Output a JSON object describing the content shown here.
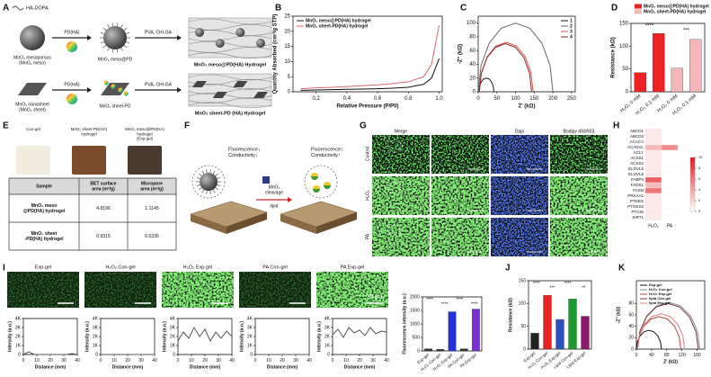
{
  "panel_labels": [
    "A",
    "B",
    "C",
    "D",
    "E",
    "F",
    "G",
    "H",
    "I",
    "J",
    "K"
  ],
  "schematic": {
    "legend": "HA-DOPA",
    "meso": [
      "MnO₂ mesoporous",
      "(MnO₂ meso)"
    ],
    "step1_top": "PD(HA)",
    "meso_pd": "MnO₂ meso@PD",
    "step2_top": "PVA, CHI-GA",
    "gel_top": "MnO₂ meso@PD(HA) Hydrogel",
    "sheet": [
      "MnO₂ nanosheet",
      "(MnO₂ sheet)"
    ],
    "step1_bottom": "PD(HA)",
    "sheet_pd": "MnO₂ sheet-PD",
    "step2_bottom": "PVA, CHI-GA",
    "gel_bottom": "MnO₂ sheet-PD (HA) Hydrogel"
  },
  "photos": {
    "labels": [
      [
        "Con-gel"
      ],
      [
        "MnO₂ sheet-PD(HA)",
        "hydrogel"
      ],
      [
        "MnO₂ meso@PD(HA)",
        "hydrogel",
        "(Exp-gel)"
      ]
    ]
  },
  "table": {
    "header": [
      [
        "Sample"
      ],
      [
        "BET surface",
        "area (m²/g)"
      ],
      [
        "Micropore",
        "area (m²/g)"
      ]
    ],
    "rows": [
      [
        [
          "MnO₂ meso",
          "@PD(HA) hydrogel"
        ],
        [
          "4.8196"
        ],
        [
          "1.1145"
        ]
      ],
      [
        [
          "MnO₂ sheet",
          "-PD(HA) hydrogel"
        ],
        [
          "0.9315"
        ],
        [
          "0.5336"
        ]
      ]
    ]
  },
  "sensing": {
    "left": [
      "Fluorescence↓",
      "Conductivity↓"
    ],
    "cleavage": [
      "MnO₂",
      "cleavage"
    ],
    "lipid": "lipid",
    "right": [
      "Fluorescence↑",
      "Conductivity↑"
    ]
  },
  "imaging": {
    "columns": [
      "Merge",
      "Dapi",
      "Bodipy 493/503"
    ],
    "rows": [
      "Control",
      "H₂O₂",
      "PA"
    ]
  },
  "gel_images": {
    "labels": [
      "Exp-gel",
      "H₂O₂ Con-gel",
      "H₂O₂ Exp-gel",
      "PA Con-gel",
      "PA Exp-gel"
    ],
    "scale_bar": "50 μm"
  },
  "chart_data": [
    {
      "type": "line",
      "xlabel": "Relative Pressure (P/P0)",
      "ylabel": "Quantity Absorbed (cm³/g STP)",
      "x": [
        0.1,
        0.2,
        0.3,
        0.4,
        0.5,
        0.6,
        0.7,
        0.8,
        0.9,
        0.95,
        1.0
      ],
      "series": [
        {
          "name": "MnO₂ meso@PD(HA) hydrogel",
          "color": "#111111",
          "values": [
            0.5,
            0.6,
            0.7,
            0.8,
            0.9,
            1.0,
            1.2,
            1.5,
            2.5,
            4.5,
            11
          ]
        },
        {
          "name": "MnO₂ sheet-PD(HA) hydrogel",
          "color": "#e06666",
          "values": [
            1,
            1.3,
            1.5,
            1.7,
            2,
            2.3,
            2.7,
            3.3,
            5,
            9,
            22
          ]
        }
      ],
      "xlim": [
        0.05,
        1.02
      ],
      "xticks": [
        0.2,
        0.4,
        0.6,
        0.8,
        {
          "value": 1,
          "label": "1.0"
        }
      ],
      "ylim": [
        0,
        25
      ],
      "yticks": [
        0,
        5,
        10,
        15,
        20,
        25
      ],
      "legend": "upper left"
    },
    {
      "type": "line",
      "xlabel": "Z' (kΩ)",
      "ylabel": "-Z'' (kΩ)",
      "series": [
        {
          "name": "1",
          "color": "#111111",
          "x": [
            42,
            40.5,
            36.1,
            29.7,
            22,
            14.3,
            7.9,
            3.5,
            2
          ],
          "values": [
            0,
            7.7,
            14.1,
            18.5,
            20,
            18.5,
            14.1,
            7.7,
            0
          ]
        },
        {
          "name": "2",
          "color": "#666666",
          "x": [
            200,
            192.4,
            170.7,
            138.3,
            100,
            61.7,
            29.3,
            7.6,
            0
          ],
          "values": [
            0,
            38.3,
            70.7,
            92.4,
            100,
            92.4,
            70.7,
            38.3,
            0
          ]
        },
        {
          "name": "3",
          "color": "#d9534f",
          "x": [
            147,
            141.5,
            125.9,
            102.6,
            75,
            47.4,
            24.1,
            8.5,
            3
          ],
          "values": [
            0,
            27.6,
            50.9,
            66.5,
            72,
            66.5,
            50.9,
            27.6,
            0
          ]
        },
        {
          "name": "4",
          "color": "#8b2a2a",
          "x": [
            143,
            137.7,
            122.5,
            99.8,
            73,
            46.2,
            23.5,
            8.3,
            3
          ],
          "values": [
            0,
            26.8,
            49.5,
            64.7,
            70,
            64.7,
            49.5,
            26.8,
            0
          ]
        }
      ],
      "xlim": [
        0,
        260
      ],
      "xticks": [
        0,
        50,
        100,
        150,
        200,
        250
      ],
      "ylim": [
        0,
        110
      ],
      "yticks": [
        0,
        20,
        40,
        60,
        80,
        100
      ],
      "legend": "upper right"
    },
    {
      "type": "bar",
      "ylabel": "Resistance (kΩ)",
      "categories": [
        "H₂O₂ 0 mM",
        "H₂O₂ 0.1 mM",
        "H₂O₂ 0 mM",
        "H₂O₂ 0.1 mM"
      ],
      "series": [
        {
          "name": "MnO₂ meso@PD(HA) hydrogel",
          "color": "#ee2222",
          "values": [
            42,
            128,
            null,
            null
          ]
        },
        {
          "name": "MnO₂ sheet-PD(HA) hydrogel",
          "color": "#f4b6b6",
          "values": [
            null,
            null,
            52,
            115
          ]
        }
      ],
      "ylim": [
        0,
        150
      ],
      "yticks": [
        0,
        50,
        100,
        150
      ],
      "legend": "upper left",
      "annotations": [
        "****",
        "***"
      ]
    },
    {
      "type": "bar",
      "ylabel": "Fluorescence intensity (a.u.)",
      "categories": [
        "Exp-gel",
        "H₂O₂ Con-gel",
        "H₂O₂ Exp-gel",
        "PA Con-gel",
        "PA Exp-gel"
      ],
      "values": [
        80,
        60,
        1450,
        80,
        1550
      ],
      "colors": [
        "#333333",
        "#333333",
        "#2233dd",
        "#333333",
        "#7b2fd0"
      ],
      "ylim": [
        0,
        2000
      ],
      "yticks": [
        0,
        500,
        1000,
        1500,
        2000
      ],
      "annotations": [
        "****",
        "****",
        "****",
        "****"
      ]
    },
    {
      "type": "bar",
      "ylabel": "Resistance (kΩ)",
      "categories": [
        "Exp-gel",
        "H₂O₂ Con-gel",
        "H₂O₂ Exp-gel",
        "Lipid Con-gel",
        "Lipid Exp-gel"
      ],
      "values": [
        35,
        118,
        65,
        110,
        72
      ],
      "colors": [
        "#222222",
        "#e8231f",
        "#3050c0",
        "#1a9a2a",
        "#8b1a6a"
      ],
      "ylim": [
        0,
        150
      ],
      "yticks": [
        0,
        50,
        100,
        150
      ],
      "annotations": [
        "****",
        "***",
        "****",
        "**"
      ]
    },
    {
      "type": "line",
      "xlabel": "Z' (kΩ)",
      "ylabel": "-Z'' (kΩ)",
      "series": [
        {
          "name": "Exp-gel",
          "color": "#111111",
          "x": [
            66,
            63.5,
            56.3,
            45.6,
            33,
            20.4,
            9.7,
            2.5,
            0
          ],
          "values": [
            0,
            12.6,
            23.3,
            30.5,
            33,
            30.5,
            23.3,
            12.6,
            0
          ]
        },
        {
          "name": "H₂O₂ Con-gel",
          "color": "#888888",
          "x": [
            167,
            160.8,
            143,
            116.4,
            85,
            53.6,
            27,
            9.2,
            3
          ],
          "values": [
            0,
            31.4,
            58,
            75.8,
            82,
            75.8,
            58,
            31.4,
            0
          ]
        },
        {
          "name": "H₂O₂ Exp-gel",
          "color": "#c04040",
          "x": [
            117,
            112.7,
            100.3,
            81.8,
            60,
            38.2,
            19.7,
            7.3,
            3
          ],
          "values": [
            0,
            21.8,
            40.3,
            52.7,
            57,
            52.7,
            40.3,
            21.8,
            0
          ]
        },
        {
          "name": "lipid Con-gel",
          "color": "#7a3a3a",
          "x": [
            163,
            156.9,
            139.6,
            113.6,
            83,
            52.4,
            26.4,
            9.1,
            3
          ],
          "values": [
            0,
            30.6,
            56.6,
            73.9,
            80,
            73.9,
            56.6,
            30.6,
            0
          ]
        },
        {
          "name": "lipid Exp-gel",
          "color": "#e08080",
          "x": [
            127,
            122.3,
            108.8,
            88.7,
            65,
            41.3,
            21.2,
            7.7,
            3
          ],
          "values": [
            0,
            23.7,
            43.8,
            57.3,
            62,
            57.3,
            43.8,
            23.7,
            0
          ]
        }
      ],
      "xlim": [
        0,
        180
      ],
      "xticks": [
        0,
        40,
        80,
        120,
        160
      ],
      "ylim": [
        0,
        120
      ],
      "yticks": [
        0,
        20,
        40,
        60,
        80
      ],
      "legend": "upper left"
    },
    {
      "type": "line",
      "xlabel": "Distance (mm)",
      "ylabel": "Intensity (a.u.)",
      "x": [
        0,
        4,
        8,
        12,
        16,
        20,
        24,
        28,
        32,
        36,
        40
      ],
      "series": [
        {
          "color": "#555555",
          "values": [
            0,
            300,
            0,
            0,
            0,
            0,
            0,
            0,
            0,
            100,
            0
          ]
        }
      ],
      "xlim": [
        0,
        40
      ],
      "xticks": [
        0,
        10,
        20,
        30,
        40
      ],
      "ylim": [
        0,
        4000
      ],
      "yticks": [
        0,
        {
          "value": 1000,
          "label": "1K"
        },
        {
          "value": 2000,
          "label": "2K"
        },
        {
          "value": 3000,
          "label": "3K"
        },
        {
          "value": 4000,
          "label": "4K"
        }
      ]
    },
    {
      "type": "line",
      "xlabel": "Distance (mm)",
      "ylabel": "Intensity (a.u.)",
      "x": [
        0,
        4,
        8,
        12,
        16,
        20,
        24,
        28,
        32,
        36,
        40
      ],
      "series": [
        {
          "color": "#555555",
          "values": [
            0,
            0,
            0,
            0,
            0,
            0,
            0,
            0,
            0,
            0,
            0
          ]
        }
      ],
      "xlim": [
        0,
        40
      ],
      "xticks": [
        0,
        10,
        20,
        30,
        40
      ],
      "ylim": [
        0,
        4000
      ],
      "yticks": [
        0,
        {
          "value": 1000,
          "label": "1K"
        },
        {
          "value": 2000,
          "label": "2K"
        },
        {
          "value": 3000,
          "label": "3K"
        },
        {
          "value": 4000,
          "label": "4K"
        }
      ]
    },
    {
      "type": "line",
      "xlabel": "Distance (mm)",
      "ylabel": "Intensity (a.u.)",
      "x": [
        0,
        4,
        8,
        12,
        16,
        20,
        24,
        28,
        32,
        36,
        40
      ],
      "series": [
        {
          "color": "#555555",
          "values": [
            1500,
            2500,
            1800,
            3000,
            2000,
            2800,
            1500,
            2500,
            1800,
            2600,
            2000
          ]
        }
      ],
      "xlim": [
        0,
        40
      ],
      "xticks": [
        0,
        10,
        20,
        30,
        40
      ],
      "ylim": [
        0,
        4000
      ],
      "yticks": [
        0,
        {
          "value": 1000,
          "label": "1K"
        },
        {
          "value": 2000,
          "label": "2K"
        },
        {
          "value": 3000,
          "label": "3K"
        },
        {
          "value": 4000,
          "label": "4K"
        }
      ]
    },
    {
      "type": "line",
      "xlabel": "Distance (mm)",
      "ylabel": "Intensity (a.u.)",
      "x": [
        0,
        4,
        8,
        12,
        16,
        20,
        24,
        28,
        32,
        36,
        40
      ],
      "series": [
        {
          "color": "#555555",
          "values": [
            0,
            0,
            0,
            0,
            0,
            0,
            0,
            0,
            0,
            0,
            0
          ]
        }
      ],
      "xlim": [
        0,
        40
      ],
      "xticks": [
        0,
        10,
        20,
        30,
        40
      ],
      "ylim": [
        0,
        4000
      ],
      "yticks": [
        0,
        {
          "value": 1000,
          "label": "1K"
        },
        {
          "value": 2000,
          "label": "2K"
        },
        {
          "value": 3000,
          "label": "3K"
        },
        {
          "value": 4000,
          "label": "4K"
        }
      ]
    },
    {
      "type": "line",
      "xlabel": "Distance (mm)",
      "ylabel": "Intensity (a.u.)",
      "x": [
        0,
        4,
        8,
        12,
        16,
        20,
        24,
        28,
        32,
        36,
        40
      ],
      "series": [
        {
          "color": "#555555",
          "values": [
            2200,
            2800,
            1900,
            3000,
            2400,
            2700,
            2100,
            3000,
            2300,
            2600,
            2500
          ]
        }
      ],
      "xlim": [
        0,
        40
      ],
      "xticks": [
        0,
        10,
        20,
        30,
        40
      ],
      "ylim": [
        0,
        4000
      ],
      "yticks": [
        0,
        {
          "value": 1000,
          "label": "1K"
        },
        {
          "value": 2000,
          "label": "2K"
        },
        {
          "value": 3000,
          "label": "3K"
        },
        {
          "value": 4000,
          "label": "4K"
        }
      ]
    },
    {
      "type": "heatmap",
      "rows": [
        "ABCD1",
        "ABCD3",
        "ACACA",
        "ACADVL",
        "ACLY",
        "ACSS1",
        "ACSS2",
        "ELOVL5",
        "ELOVL6",
        "FABP4",
        "FADS1",
        "FASN",
        "PRKAA1",
        "PTGES",
        "PTGES2",
        "PTGIS",
        "SIRT1"
      ],
      "columns": [
        "H₂O₂",
        "PA"
      ],
      "values": [
        [
          1,
          0
        ],
        [
          1,
          0
        ],
        [
          1,
          0
        ],
        [
          3,
          5
        ],
        [
          1,
          0
        ],
        [
          1,
          0
        ],
        [
          1,
          0
        ],
        [
          1,
          0
        ],
        [
          1,
          0
        ],
        [
          7,
          0
        ],
        [
          3,
          0
        ],
        [
          6,
          0
        ],
        [
          1,
          0
        ],
        [
          1,
          0
        ],
        [
          1,
          0
        ],
        [
          1,
          0
        ],
        [
          1,
          0
        ]
      ],
      "zlim": [
        0,
        10
      ],
      "zticks": [
        0,
        2,
        4,
        6,
        8,
        10
      ],
      "colormap": [
        "#ffffff",
        "#e41a1c"
      ]
    }
  ]
}
